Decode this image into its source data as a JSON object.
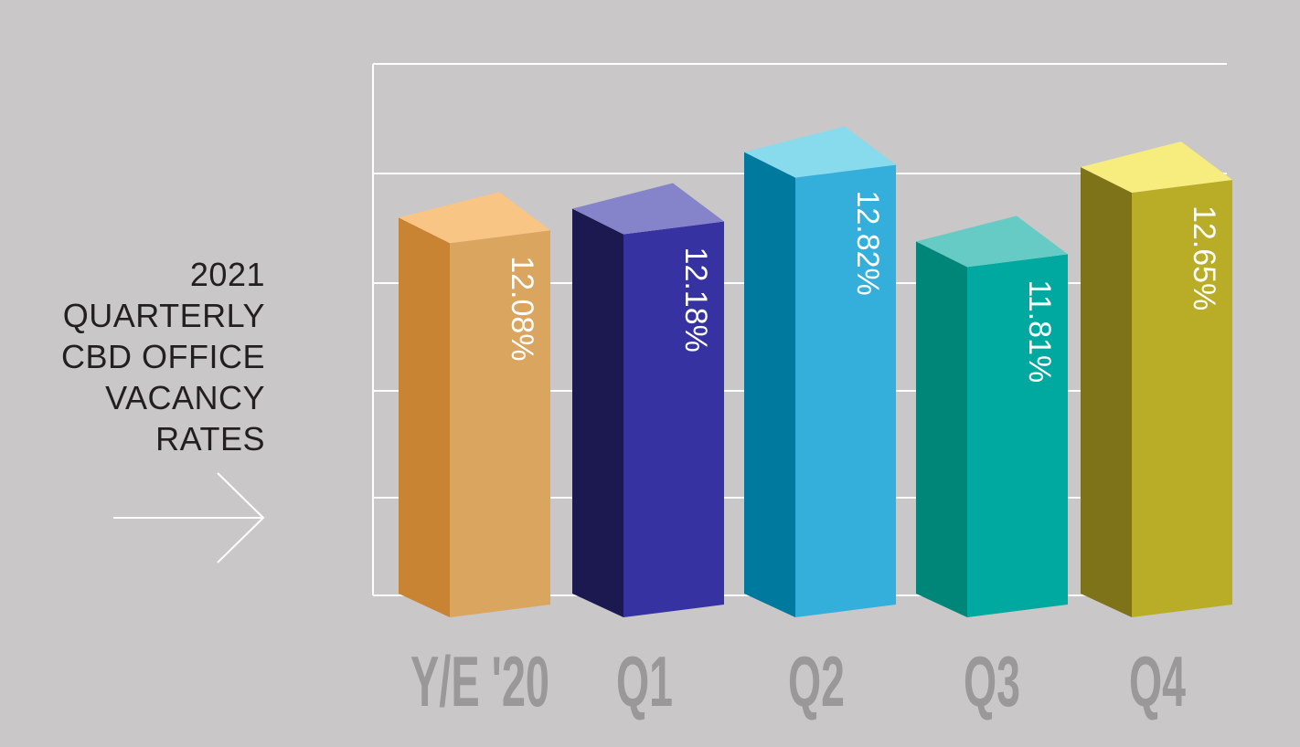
{
  "chart_data": {
    "type": "bar",
    "title_lines": [
      "2021",
      "QUARTERLY",
      "CBD OFFICE",
      "VACANCY",
      "RATES"
    ],
    "categories": [
      "Y/E '20",
      "Q1",
      "Q2",
      "Q3",
      "Q4"
    ],
    "values": [
      12.08,
      12.18,
      12.82,
      11.81,
      12.65
    ],
    "value_labels": [
      "12.08%",
      "12.18%",
      "12.82%",
      "11.81%",
      "12.65%"
    ],
    "xlabel": "",
    "ylabel": "",
    "ylim": [
      0,
      14
    ],
    "grid": true,
    "legend": "none",
    "colors": {
      "background": "#c9c7c7",
      "gridline": "#ffffff",
      "tick_label": "#9a9898",
      "title_text": "#231f20",
      "bars": [
        {
          "front": "#d9a55f",
          "side": "#c88432",
          "top": "#f8c585"
        },
        {
          "front": "#3632a1",
          "side": "#1c1951",
          "top": "#8583c9"
        },
        {
          "front": "#34afdc",
          "side": "#00799f",
          "top": "#88dbec"
        },
        {
          "front": "#00a99f",
          "side": "#008678",
          "top": "#66cbc4"
        },
        {
          "front": "#b9ad27",
          "side": "#7f7319",
          "top": "#f7ec7e"
        }
      ]
    }
  },
  "decor": {
    "arrow_icon": "right-arrow-icon"
  }
}
